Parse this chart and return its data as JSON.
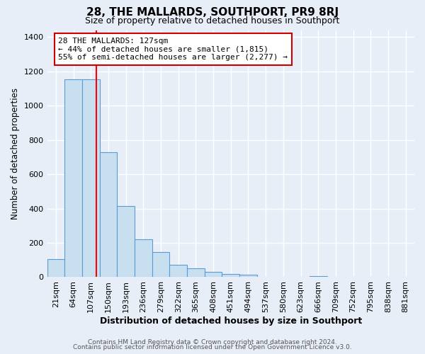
{
  "title": "28, THE MALLARDS, SOUTHPORT, PR9 8RJ",
  "subtitle": "Size of property relative to detached houses in Southport",
  "xlabel": "Distribution of detached houses by size in Southport",
  "ylabel": "Number of detached properties",
  "bar_labels": [
    "21sqm",
    "64sqm",
    "107sqm",
    "150sqm",
    "193sqm",
    "236sqm",
    "279sqm",
    "322sqm",
    "365sqm",
    "408sqm",
    "451sqm",
    "494sqm",
    "537sqm",
    "580sqm",
    "623sqm",
    "666sqm",
    "709sqm",
    "752sqm",
    "795sqm",
    "838sqm",
    "881sqm"
  ],
  "bar_values": [
    107,
    1155,
    1155,
    730,
    415,
    220,
    148,
    73,
    50,
    32,
    18,
    15,
    0,
    0,
    0,
    7,
    0,
    0,
    0,
    0,
    0
  ],
  "bar_color": "#c8dff0",
  "bar_edge_color": "#5b9bd5",
  "reference_line_color": "red",
  "reference_line_x": 2.3,
  "annotation_text": "28 THE MALLARDS: 127sqm\n← 44% of detached houses are smaller (1,815)\n55% of semi-detached houses are larger (2,277) →",
  "annotation_box_color": "white",
  "annotation_box_edge_color": "#cc0000",
  "ylim": [
    0,
    1440
  ],
  "yticks": [
    0,
    200,
    400,
    600,
    800,
    1000,
    1200,
    1400
  ],
  "footer_line1": "Contains HM Land Registry data © Crown copyright and database right 2024.",
  "footer_line2": "Contains public sector information licensed under the Open Government Licence v3.0.",
  "bg_color": "#e8eef8",
  "grid_color": "#ffffff"
}
